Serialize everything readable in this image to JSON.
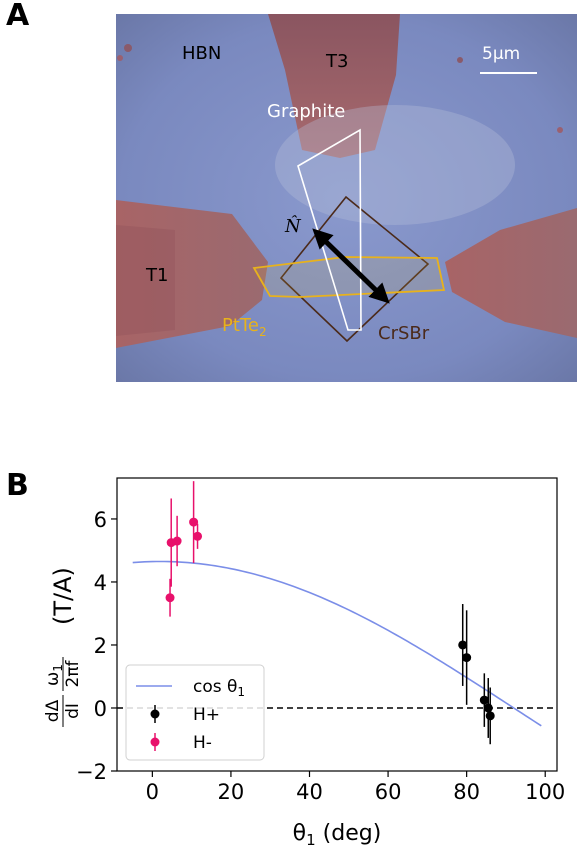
{
  "panel_a": {
    "letter": "A",
    "labels": {
      "hbn": "HBN",
      "t3": "T3",
      "scale": "5µm",
      "graphite": "Graphite",
      "n_hat": "N̂",
      "t1": "T1",
      "ptte2_base": "PtTe",
      "ptte2_sub": "2",
      "crsbr": "CrSBr"
    },
    "colors": {
      "background": "#7585bd",
      "electrode": "#9c6066",
      "ptte2": "#e8b21c",
      "crsbr": "#4b2a1a",
      "graphite": "#ffffff"
    }
  },
  "panel_b": {
    "letter": "B"
  },
  "chart_data": {
    "type": "scatter",
    "xlabel_base": "θ",
    "xlabel_sub": "1",
    "xlabel_unit": " (deg)",
    "ylabel_frac_top": "dΔ",
    "ylabel_frac_bottom": "dI",
    "ylabel_omega": "ω",
    "ylabel_omega_sub": "1",
    "ylabel_twopif": "2πf",
    "ylabel_unit": "(T/A)",
    "xlim": [
      -9,
      103
    ],
    "ylim": [
      -2,
      7.3
    ],
    "xticks": [
      0,
      20,
      40,
      60,
      80,
      100
    ],
    "yticks": [
      6,
      4,
      2,
      0,
      -2
    ],
    "ytick_labels": [
      "6",
      "4",
      "2",
      "0",
      "−2"
    ],
    "zero_line": true,
    "fit": {
      "name_base": "cos θ",
      "name_sub": "1",
      "amplitude": 4.65,
      "offset_deg": -2,
      "x_range": [
        -5,
        99
      ],
      "color": "#7b8ee8"
    },
    "series": [
      {
        "name": "H+",
        "color": "#000000",
        "points": [
          {
            "x": 79.0,
            "y": 2.0,
            "err": 1.3
          },
          {
            "x": 80.0,
            "y": 1.6,
            "err": 1.5
          },
          {
            "x": 84.5,
            "y": 0.25,
            "err": 0.85
          },
          {
            "x": 85.5,
            "y": 0.0,
            "err": 0.95
          },
          {
            "x": 86.0,
            "y": -0.25,
            "err": 0.9
          }
        ]
      },
      {
        "name": "H-",
        "color": "#e8116b",
        "points": [
          {
            "x": 4.5,
            "y": 3.5,
            "err": 0.6
          },
          {
            "x": 4.8,
            "y": 5.25,
            "err": 1.4
          },
          {
            "x": 6.3,
            "y": 5.3,
            "err": 0.8
          },
          {
            "x": 10.5,
            "y": 5.9,
            "err": 1.3
          },
          {
            "x": 11.5,
            "y": 5.45,
            "err": 0.4
          }
        ]
      }
    ],
    "legend_position": "lower-left"
  }
}
